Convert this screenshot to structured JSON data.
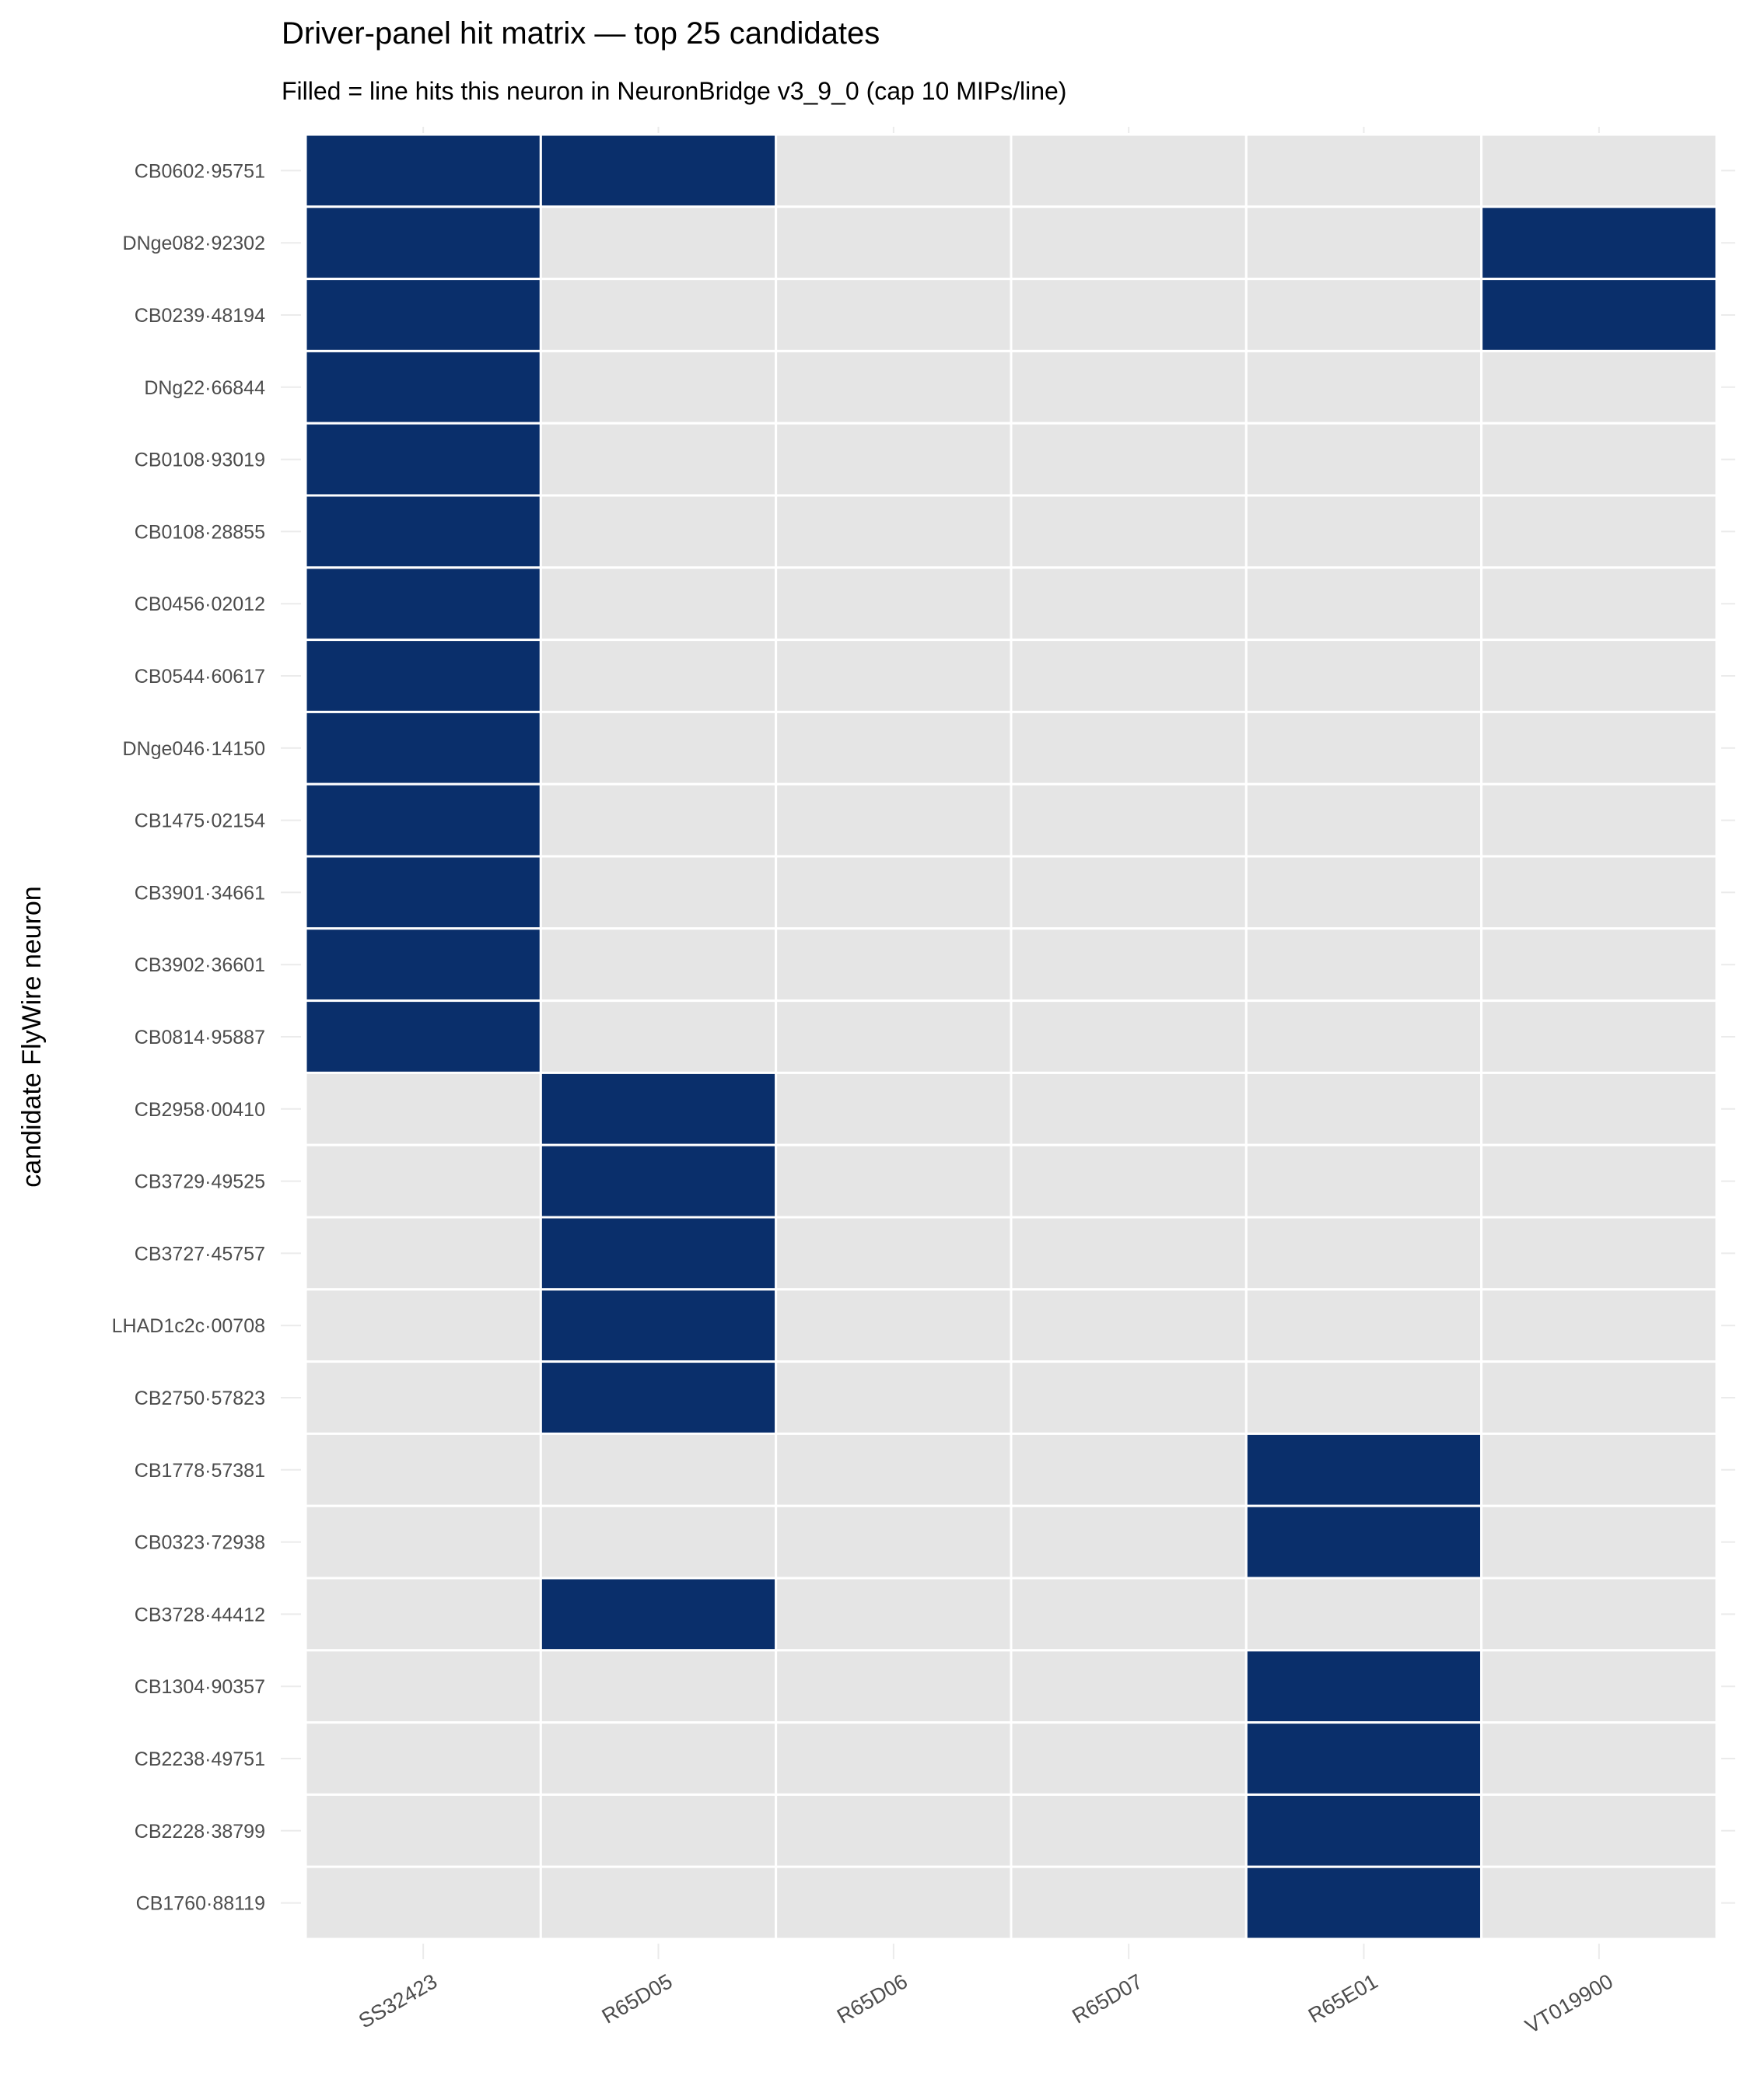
{
  "chart_data": {
    "type": "heatmap",
    "title": "Driver-panel hit matrix — top 25 candidates",
    "subtitle": "Filled = line hits this neuron in NeuronBridge v3_9_0 (cap 10 MIPs/line)",
    "xlabel": "",
    "ylabel": "candidate FlyWire neuron",
    "columns": [
      "SS32423",
      "R65D05",
      "R65D06",
      "R65D07",
      "R65E01",
      "VT019900"
    ],
    "rows": [
      "CB0602·95751",
      "DNge082·92302",
      "CB0239·48194",
      "DNg22·66844",
      "CB0108·93019",
      "CB0108·28855",
      "CB0456·02012",
      "CB0544·60617",
      "DNge046·14150",
      "CB1475·02154",
      "CB3901·34661",
      "CB3902·36601",
      "CB0814·95887",
      "CB2958·00410",
      "CB3729·49525",
      "CB3727·45757",
      "LHAD1c2c·00708",
      "CB2750·57823",
      "CB1778·57381",
      "CB0323·72938",
      "CB3728·44412",
      "CB1304·90357",
      "CB2238·49751",
      "CB2228·38799",
      "CB1760·88119"
    ],
    "hits": [
      [
        1,
        1,
        0,
        0,
        0,
        0
      ],
      [
        1,
        0,
        0,
        0,
        0,
        1
      ],
      [
        1,
        0,
        0,
        0,
        0,
        1
      ],
      [
        1,
        0,
        0,
        0,
        0,
        0
      ],
      [
        1,
        0,
        0,
        0,
        0,
        0
      ],
      [
        1,
        0,
        0,
        0,
        0,
        0
      ],
      [
        1,
        0,
        0,
        0,
        0,
        0
      ],
      [
        1,
        0,
        0,
        0,
        0,
        0
      ],
      [
        1,
        0,
        0,
        0,
        0,
        0
      ],
      [
        1,
        0,
        0,
        0,
        0,
        0
      ],
      [
        1,
        0,
        0,
        0,
        0,
        0
      ],
      [
        1,
        0,
        0,
        0,
        0,
        0
      ],
      [
        1,
        0,
        0,
        0,
        0,
        0
      ],
      [
        0,
        1,
        0,
        0,
        0,
        0
      ],
      [
        0,
        1,
        0,
        0,
        0,
        0
      ],
      [
        0,
        1,
        0,
        0,
        0,
        0
      ],
      [
        0,
        1,
        0,
        0,
        0,
        0
      ],
      [
        0,
        1,
        0,
        0,
        0,
        0
      ],
      [
        0,
        0,
        0,
        0,
        1,
        0
      ],
      [
        0,
        0,
        0,
        0,
        1,
        0
      ],
      [
        0,
        1,
        0,
        0,
        0,
        0
      ],
      [
        0,
        0,
        0,
        0,
        1,
        0
      ],
      [
        0,
        0,
        0,
        0,
        1,
        0
      ],
      [
        0,
        0,
        0,
        0,
        1,
        0
      ],
      [
        0,
        0,
        0,
        0,
        1,
        0
      ]
    ],
    "colors": {
      "hit": "#0a2f6b",
      "miss": "#e5e5e5",
      "tile_border": "#ffffff"
    },
    "legend": "none",
    "grid": true
  }
}
